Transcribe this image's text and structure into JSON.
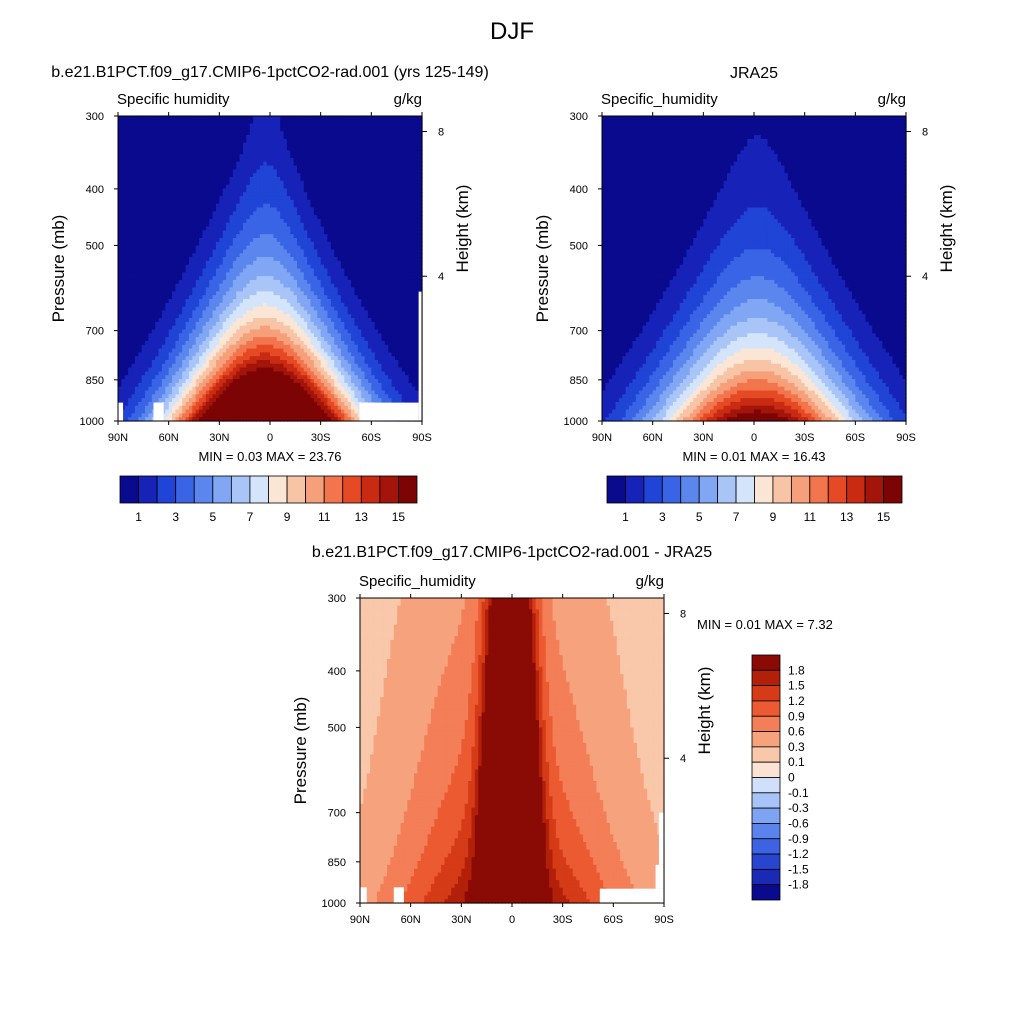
{
  "page_title": "DJF",
  "colors": {
    "model_obs_scale": [
      "#0a0a8f",
      "#1722b8",
      "#1f44d6",
      "#3a64e6",
      "#5b86ee",
      "#80a6f4",
      "#a9c5f8",
      "#d4e4fb",
      "#fbe6d6",
      "#f8c4a6",
      "#f6a07b",
      "#f2754d",
      "#e54a24",
      "#c92a12",
      "#a3150a",
      "#7d0404"
    ],
    "diff_scale": [
      "#0a0a8f",
      "#1a2ab4",
      "#2845d0",
      "#3d63e2",
      "#5a84ec",
      "#7ea3f2",
      "#a8c3f7",
      "#d0e0fb",
      "#fbe3d4",
      "#f9c7aa",
      "#f6a27d",
      "#f37e57",
      "#ec5a32",
      "#d53b17",
      "#b3200a",
      "#8a0a05"
    ]
  },
  "chart_data": [
    {
      "type": "heatmap",
      "panel_title": "b.e21.B1PCT.f09_g17.CMIP6-1pctCO2-rad.001 (yrs 125-149)",
      "left_label": "Specific humidity",
      "right_label": "g/kg",
      "xlabel": "",
      "ylabel": "Pressure (mb)",
      "y2label": "Height (km)",
      "x_ticks": [
        "90N",
        "60N",
        "30N",
        "0",
        "30S",
        "60S",
        "90S"
      ],
      "y_ticks": [
        "300",
        "400",
        "500",
        "700",
        "850",
        "1000"
      ],
      "y2_ticks": [
        "8",
        "4"
      ],
      "stats_text": "MIN =   0.03  MAX =  23.76",
      "colorbar_labels": [
        "1",
        "3",
        "5",
        "7",
        "9",
        "11",
        "13",
        "15"
      ],
      "levels": [
        1,
        2,
        3,
        4,
        5,
        6,
        7,
        8,
        9,
        10,
        11,
        12,
        13,
        14,
        15
      ],
      "ylim": [
        1000,
        300
      ],
      "xlim": [
        90,
        -90
      ],
      "min": 0.03,
      "max": 23.76
    },
    {
      "type": "heatmap",
      "panel_title": "JRA25",
      "left_label": "Specific_humidity",
      "right_label": "g/kg",
      "xlabel": "",
      "ylabel": "Pressure (mb)",
      "y2label": "Height (km)",
      "x_ticks": [
        "90N",
        "60N",
        "30N",
        "0",
        "30S",
        "60S",
        "90S"
      ],
      "y_ticks": [
        "300",
        "400",
        "500",
        "700",
        "850",
        "1000"
      ],
      "y2_ticks": [
        "8",
        "4"
      ],
      "stats_text": "MIN =   0.01  MAX =  16.43",
      "colorbar_labels": [
        "1",
        "3",
        "5",
        "7",
        "9",
        "11",
        "13",
        "15"
      ],
      "levels": [
        1,
        2,
        3,
        4,
        5,
        6,
        7,
        8,
        9,
        10,
        11,
        12,
        13,
        14,
        15
      ],
      "ylim": [
        1000,
        300
      ],
      "xlim": [
        90,
        -90
      ],
      "min": 0.01,
      "max": 16.43
    },
    {
      "type": "heatmap",
      "panel_title": "b.e21.B1PCT.f09_g17.CMIP6-1pctCO2-rad.001 - JRA25",
      "left_label": "Specific_humidity",
      "right_label": "g/kg",
      "xlabel": "",
      "ylabel": "Pressure (mb)",
      "y2label": "Height (km)",
      "x_ticks": [
        "90N",
        "60N",
        "30N",
        "0",
        "30S",
        "60S",
        "90S"
      ],
      "y_ticks": [
        "300",
        "400",
        "500",
        "700",
        "850",
        "1000"
      ],
      "y2_ticks": [
        "8",
        "4"
      ],
      "stats_text": "MIN =   0.01  MAX =   7.32",
      "colorbar_labels": [
        "1.8",
        "1.5",
        "1.2",
        "0.9",
        "0.6",
        "0.3",
        "0.1",
        "0",
        "-0.1",
        "-0.3",
        "-0.6",
        "-0.9",
        "-1.2",
        "-1.5",
        "-1.8"
      ],
      "levels": [
        -1.8,
        -1.5,
        -1.2,
        -0.9,
        -0.6,
        -0.3,
        -0.1,
        0,
        0.1,
        0.3,
        0.6,
        0.9,
        1.2,
        1.5,
        1.8
      ],
      "ylim": [
        1000,
        300
      ],
      "xlim": [
        90,
        -90
      ],
      "min": 0.01,
      "max": 7.32
    }
  ]
}
